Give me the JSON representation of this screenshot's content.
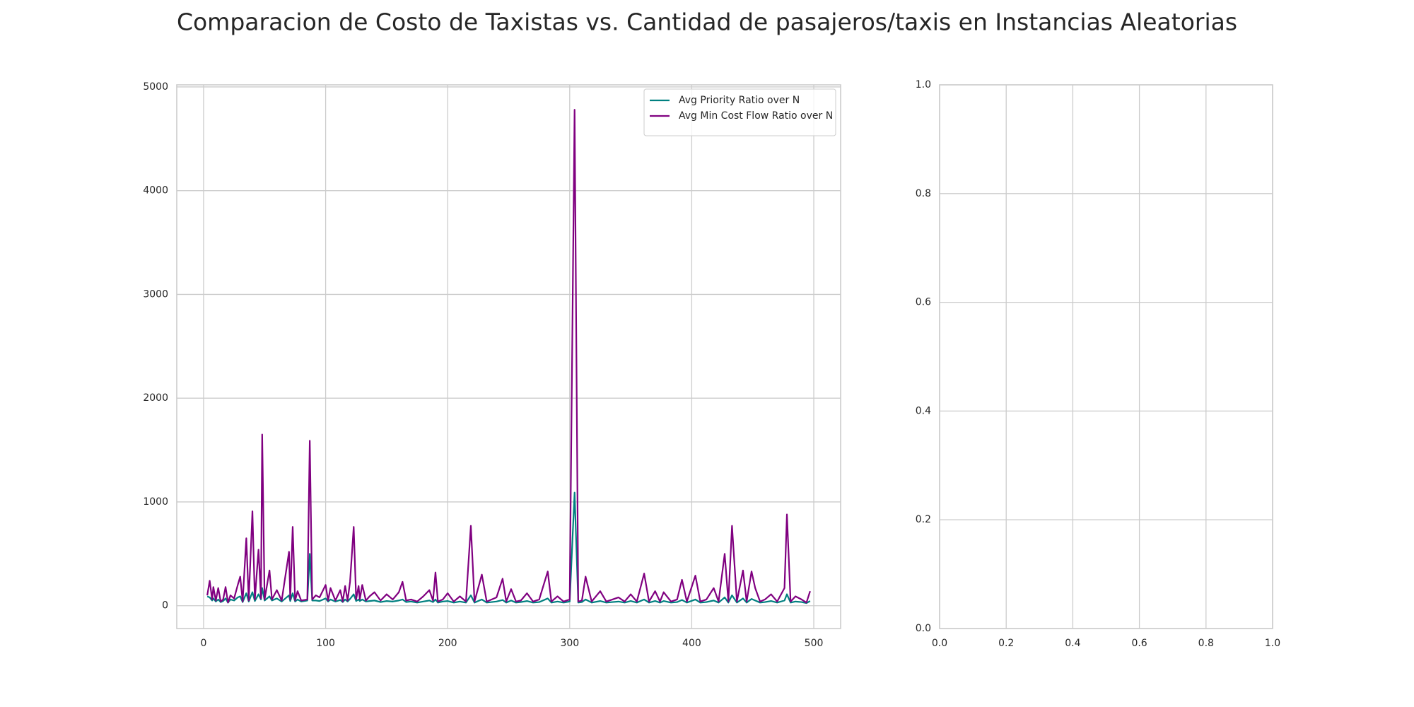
{
  "chart_data": [
    {
      "type": "line",
      "title": "Comparacion de Costo de Taxistas vs. Cantidad de pasajeros/taxis en Instancias Aleatorias",
      "x": [
        3,
        5,
        7,
        8,
        10,
        12,
        14,
        16,
        18,
        20,
        22,
        25,
        28,
        30,
        32,
        35,
        37,
        40,
        42,
        45,
        47,
        48,
        50,
        54,
        56,
        60,
        64,
        70,
        71,
        73,
        75,
        77,
        80,
        85,
        87,
        89,
        92,
        95,
        100,
        102,
        104,
        108,
        112,
        114,
        116,
        118,
        120,
        123,
        125,
        127,
        128,
        130,
        133,
        136,
        140,
        145,
        150,
        155,
        160,
        163,
        166,
        170,
        175,
        180,
        185,
        188,
        190,
        192,
        196,
        200,
        205,
        210,
        215,
        219,
        222,
        228,
        232,
        240,
        245,
        248,
        252,
        256,
        260,
        265,
        270,
        275,
        282,
        285,
        290,
        295,
        300,
        304,
        307,
        310,
        313,
        318,
        325,
        330,
        335,
        340,
        345,
        350,
        355,
        361,
        365,
        370,
        374,
        377,
        383,
        388,
        392,
        396,
        403,
        407,
        412,
        418,
        422,
        427,
        430,
        433,
        437,
        442,
        445,
        449,
        452,
        456,
        460,
        465,
        470,
        476,
        478,
        481,
        485,
        490,
        494,
        497
      ],
      "series": [
        {
          "name": "Avg Priority Ratio over N",
          "color": "#008080",
          "values": [
            90,
            80,
            50,
            70,
            40,
            60,
            35,
            45,
            70,
            30,
            60,
            50,
            80,
            90,
            35,
            120,
            40,
            130,
            45,
            110,
            60,
            170,
            50,
            90,
            50,
            70,
            40,
            100,
            45,
            120,
            40,
            60,
            40,
            50,
            500,
            50,
            50,
            45,
            70,
            40,
            60,
            40,
            55,
            35,
            60,
            40,
            65,
            110,
            45,
            60,
            45,
            60,
            40,
            45,
            50,
            35,
            45,
            40,
            50,
            60,
            35,
            40,
            30,
            40,
            50,
            35,
            60,
            30,
            40,
            45,
            30,
            40,
            30,
            100,
            30,
            60,
            30,
            40,
            55,
            30,
            50,
            30,
            35,
            45,
            30,
            35,
            70,
            30,
            40,
            30,
            40,
            1090,
            30,
            35,
            60,
            30,
            45,
            30,
            35,
            40,
            30,
            45,
            30,
            60,
            30,
            45,
            30,
            45,
            30,
            35,
            55,
            30,
            60,
            30,
            35,
            50,
            30,
            80,
            30,
            100,
            30,
            70,
            30,
            65,
            50,
            30,
            35,
            45,
            30,
            50,
            110,
            30,
            40,
            35,
            25,
            45
          ]
        },
        {
          "name": "Avg Min Cost Flow Ratio over N",
          "color": "#800080",
          "values": [
            100,
            240,
            60,
            180,
            50,
            170,
            40,
            60,
            180,
            30,
            100,
            70,
            200,
            280,
            40,
            650,
            50,
            910,
            60,
            540,
            70,
            1650,
            60,
            340,
            60,
            150,
            50,
            520,
            60,
            760,
            50,
            140,
            50,
            60,
            1590,
            60,
            100,
            80,
            200,
            50,
            170,
            50,
            150,
            40,
            190,
            50,
            230,
            760,
            60,
            190,
            60,
            200,
            50,
            90,
            130,
            50,
            110,
            60,
            130,
            230,
            50,
            60,
            40,
            90,
            150,
            50,
            320,
            40,
            60,
            120,
            40,
            90,
            40,
            770,
            40,
            300,
            40,
            80,
            260,
            40,
            160,
            40,
            50,
            120,
            40,
            60,
            330,
            40,
            90,
            40,
            60,
            4780,
            40,
            50,
            280,
            40,
            140,
            40,
            60,
            80,
            40,
            110,
            40,
            310,
            40,
            140,
            40,
            130,
            40,
            60,
            250,
            40,
            290,
            40,
            60,
            170,
            40,
            500,
            40,
            770,
            40,
            340,
            40,
            330,
            170,
            40,
            60,
            110,
            40,
            170,
            880,
            40,
            90,
            60,
            30,
            140
          ]
        }
      ],
      "xlim": [
        -22,
        522
      ],
      "ylim": [
        -220,
        5020
      ],
      "xticks": [
        0,
        100,
        200,
        300,
        400,
        500
      ],
      "yticks": [
        0,
        1000,
        2000,
        3000,
        4000,
        5000
      ],
      "grid": true,
      "legend": "upper-right"
    },
    {
      "type": "line",
      "series": [],
      "xlim": [
        0,
        1
      ],
      "ylim": [
        0,
        1
      ],
      "xticks": [
        {
          "value": 0,
          "label": "0.0"
        },
        {
          "value": 0.2,
          "label": "0.2"
        },
        {
          "value": 0.4,
          "label": "0.4"
        },
        {
          "value": 0.6,
          "label": "0.6"
        },
        {
          "value": 0.8,
          "label": "0.8"
        },
        {
          "value": 1,
          "label": "1.0"
        }
      ],
      "yticks": [
        {
          "value": 0,
          "label": "0.0"
        },
        {
          "value": 0.2,
          "label": "0.2"
        },
        {
          "value": 0.4,
          "label": "0.4"
        },
        {
          "value": 0.6,
          "label": "0.6"
        },
        {
          "value": 0.8,
          "label": "0.8"
        },
        {
          "value": 1,
          "label": "1.0"
        }
      ],
      "grid": true
    }
  ]
}
